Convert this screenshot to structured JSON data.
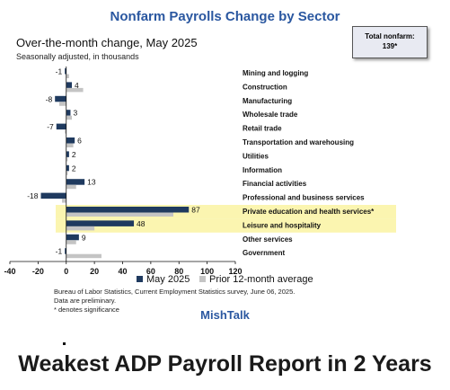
{
  "chart_data": {
    "type": "bar",
    "orientation": "horizontal",
    "title": "Nonfarm Payrolls Change by Sector",
    "subtitle": "Over-the-month change, May 2025",
    "note": "Seasonally adjusted, in thousands",
    "total_box": {
      "line1": "Total nonfarm:",
      "line2": "139*"
    },
    "categories": [
      "Mining and logging",
      "Construction",
      "Manufacturing",
      "Wholesale trade",
      "Retail trade",
      "Transportation and warehousing",
      "Utilities",
      "Information",
      "Financial activities",
      "Professional and business services",
      "Private education and health services*",
      "Leisure and hospitality",
      "Other services",
      "Government"
    ],
    "highlighted_categories": [
      "Private education and health services*",
      "Leisure and hospitality"
    ],
    "series": [
      {
        "name": "May 2025",
        "color": "#1f3a5f",
        "values": [
          -1,
          4,
          -8,
          3,
          -7,
          6,
          2,
          2,
          13,
          -18,
          87,
          48,
          9,
          -1
        ]
      },
      {
        "name": "Prior 12-month average",
        "color": "#c4c4c4",
        "values": [
          2,
          12,
          -5,
          4,
          -1,
          5,
          1,
          1,
          7,
          -3,
          76,
          20,
          7,
          25
        ]
      }
    ],
    "data_labels": [
      "-1",
      "4",
      "-8",
      "3",
      "-7",
      "6",
      "2",
      "2",
      "13",
      "-18",
      "87",
      "48",
      "9",
      "-1"
    ],
    "xlim": [
      -40,
      120
    ],
    "xticks": [
      -40,
      -20,
      0,
      20,
      40,
      60,
      80,
      100,
      120
    ],
    "xtick_labels": [
      "-40",
      "-20",
      "0",
      "20",
      "40",
      "60",
      "80",
      "100",
      "120"
    ],
    "legend_position": "bottom",
    "highlight_color": "#fbf5b0"
  },
  "footer": {
    "source_line1": "Bureau of Labor Statistics, Current Employment Statistics survey, June 06, 2025.",
    "source_line2": "Data are preliminary.",
    "source_line3": "* denotes significance",
    "brand": "MishTalk"
  },
  "headline": "Weakest ADP Payroll Report in 2 Years"
}
